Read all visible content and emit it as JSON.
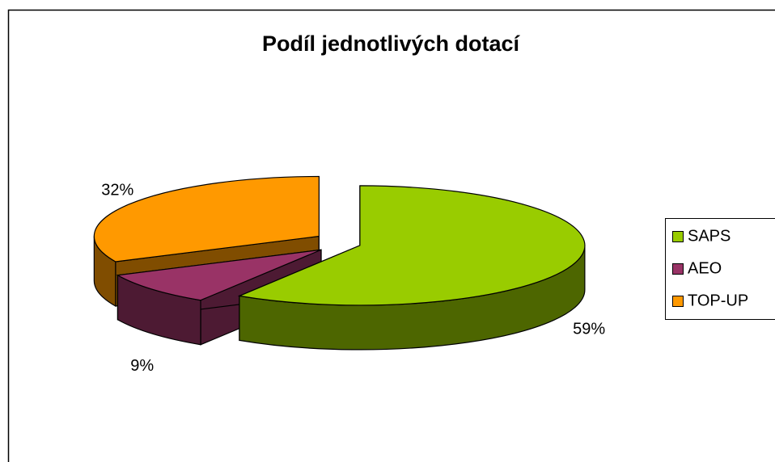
{
  "chart_data": {
    "type": "pie",
    "title": "Podíl jednotlivých dotací",
    "categories": [
      "SAPS",
      "AEO",
      "TOP-UP"
    ],
    "values": [
      59,
      9,
      32
    ],
    "value_labels": [
      "59%",
      "9%",
      "32%"
    ],
    "colors": [
      "#99cc00",
      "#993366",
      "#ff9900"
    ],
    "legend": "right"
  }
}
